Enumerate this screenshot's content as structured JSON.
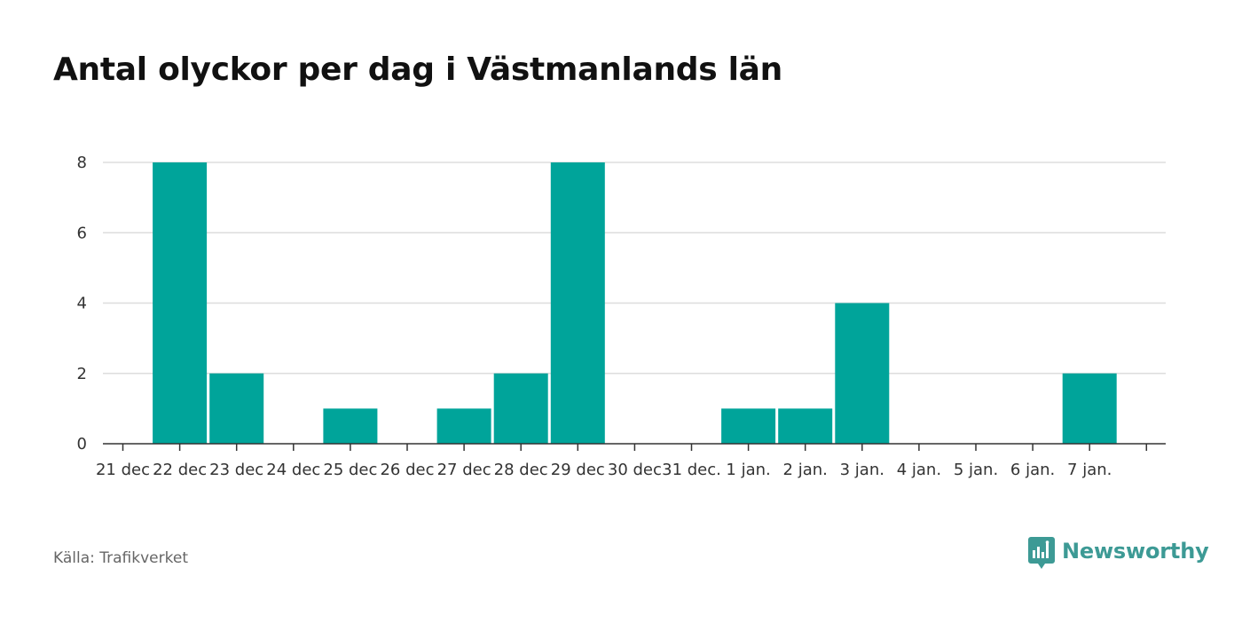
{
  "title": "Antal olyckor per dag i Västmanlands län",
  "source": "Källa: Trafikverket",
  "brand": {
    "name": "Newsworthy",
    "icon": "newsworthy-logo-icon",
    "color": "#3d9a95"
  },
  "chart_data": {
    "type": "bar",
    "title": "Antal olyckor per dag i Västmanlands län",
    "xlabel": "",
    "ylabel": "",
    "categories": [
      "21 dec",
      "22 dec",
      "23 dec",
      "24 dec",
      "25 dec",
      "26 dec",
      "27 dec",
      "28 dec",
      "29 dec",
      "30 dec",
      "31 dec.",
      "1 jan.",
      "2 jan.",
      "3 jan.",
      "4 jan.",
      "5 jan.",
      "6 jan.",
      "7 jan."
    ],
    "values": [
      0,
      8,
      2,
      0,
      1,
      0,
      1,
      2,
      8,
      0,
      0,
      1,
      1,
      4,
      0,
      0,
      0,
      2
    ],
    "yticks": [
      0,
      2,
      4,
      6,
      8
    ],
    "ylim": [
      0,
      8
    ],
    "grid": true,
    "legend": "none",
    "bar_color": "#00a49a"
  }
}
